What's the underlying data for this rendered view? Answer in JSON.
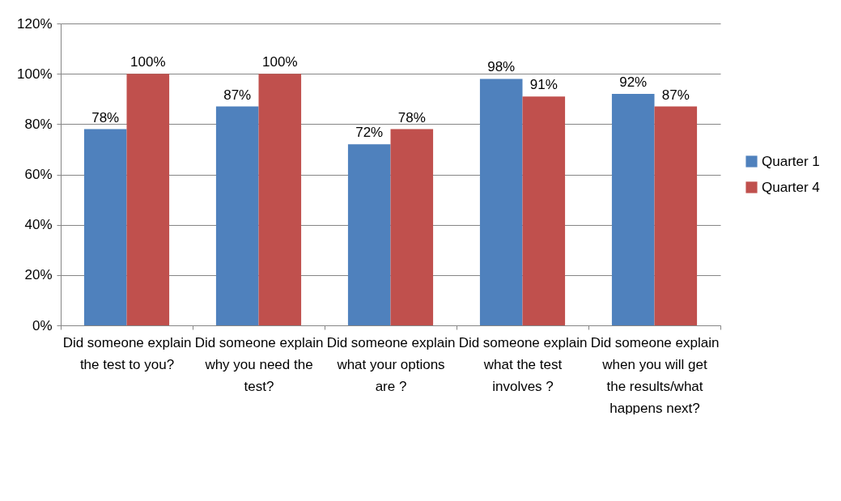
{
  "chart_data": {
    "type": "bar",
    "categories": [
      "Did someone explain the test to you?",
      "Did someone explain why you need the test?",
      "Did someone explain what your options are ?",
      "Did someone explain what the test involves ?",
      "Did someone explain when you will get the results/what happens next?"
    ],
    "series": [
      {
        "name": "Quarter 1",
        "color": "#4f81bd",
        "values": [
          78,
          87,
          72,
          98,
          92
        ],
        "value_labels": [
          "78%",
          "87%",
          "72%",
          "98%",
          "92%"
        ]
      },
      {
        "name": "Quarter 4",
        "color": "#c0504d",
        "values": [
          100,
          100,
          78,
          91,
          87
        ],
        "value_labels": [
          "100%",
          "100%",
          "78%",
          "91%",
          "87%"
        ]
      }
    ],
    "ylim": [
      0,
      120
    ],
    "yticks": [
      {
        "value": 0,
        "label": "0%"
      },
      {
        "value": 20,
        "label": "20%"
      },
      {
        "value": 40,
        "label": "40%"
      },
      {
        "value": 60,
        "label": "60%"
      },
      {
        "value": 80,
        "label": "80%"
      },
      {
        "value": 100,
        "label": "100%"
      },
      {
        "value": 120,
        "label": "120%"
      }
    ],
    "grid": "y",
    "legend": "right"
  }
}
